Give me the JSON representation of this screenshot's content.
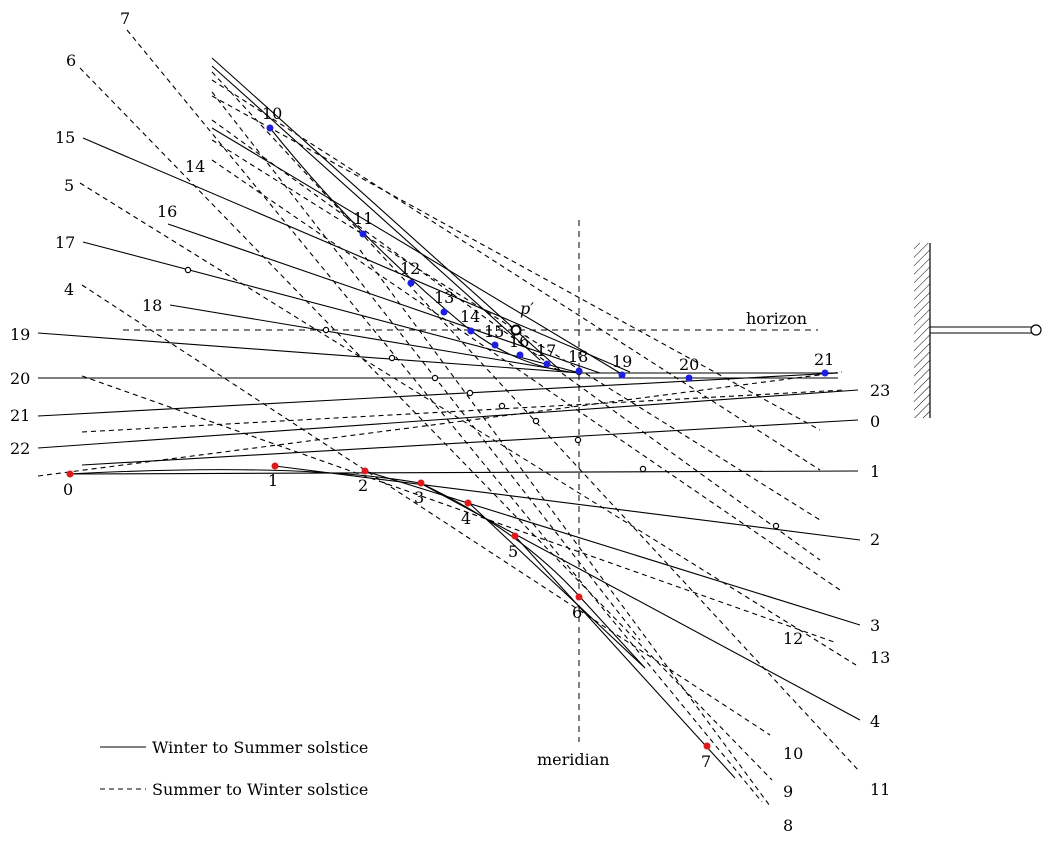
{
  "labels": {
    "horizon": "horizon",
    "meridian": "meridian",
    "p_prime": "p′"
  },
  "legend": {
    "solid": "Winter to Summer solstice",
    "dashed": "Summer to Winter solstice"
  },
  "line_labels": {
    "solid_left": [
      "15",
      "14",
      "16",
      "17",
      "18",
      "19",
      "20",
      "21",
      "22"
    ],
    "solid_right": [
      "23",
      "0",
      "1",
      "2",
      "3",
      "4"
    ],
    "dashed_left": [
      "7",
      "6",
      "5",
      "4"
    ],
    "dashed_right": [
      "12",
      "13",
      "10",
      "11",
      "9",
      "8"
    ]
  },
  "blue_points": [
    "10",
    "11",
    "12",
    "13",
    "14",
    "15",
    "16",
    "17",
    "18",
    "19",
    "20",
    "21"
  ],
  "red_points": [
    "0",
    "1",
    "2",
    "3",
    "4",
    "5",
    "6",
    "7"
  ],
  "colors": {
    "blue": "#1f1fe0",
    "red": "#e01a1a",
    "ink": "#000000"
  }
}
